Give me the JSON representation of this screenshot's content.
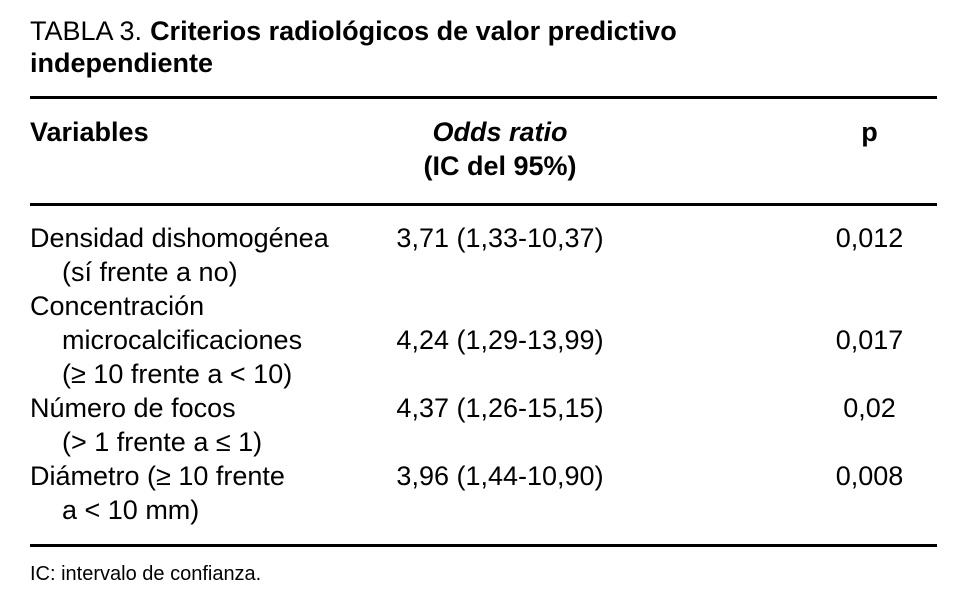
{
  "page": {
    "background": "#ffffff",
    "text_color": "#000000"
  },
  "title": {
    "prefix": "TABLA 3.",
    "text": "Criterios radiológicos de valor predictivo independiente"
  },
  "table": {
    "headers": {
      "variables": "Variables",
      "odds_ratio": "Odds ratio",
      "odds_ratio_ci": "(IC del 95%)",
      "p": "p"
    },
    "rows": [
      {
        "lines": [
          {
            "text": "Densidad dishomogénea",
            "indent": false,
            "odds_ratio": "3,71 (1,33-10,37)",
            "p": "0,012"
          },
          {
            "text": "(sí frente a no)",
            "indent": true
          }
        ]
      },
      {
        "lines": [
          {
            "text": "Concentración",
            "indent": false
          },
          {
            "text": "microcalcificaciones",
            "indent": true,
            "odds_ratio": "4,24 (1,29-13,99)",
            "p": "0,017"
          },
          {
            "text": "(≥ 10 frente a < 10)",
            "indent": true
          }
        ]
      },
      {
        "lines": [
          {
            "text": "Número de focos",
            "indent": false,
            "odds_ratio": "4,37 (1,26-15,15)",
            "p": "0,02"
          },
          {
            "text": "(> 1 frente a ≤ 1)",
            "indent": true
          }
        ]
      },
      {
        "lines": [
          {
            "text": "Diámetro (≥ 10 frente",
            "indent": false,
            "odds_ratio": "3,96 (1,44-10,90)",
            "p": "0,008"
          },
          {
            "text": "a < 10 mm)",
            "indent": true
          }
        ]
      }
    ]
  },
  "footnote": "IC: intervalo de confianza."
}
